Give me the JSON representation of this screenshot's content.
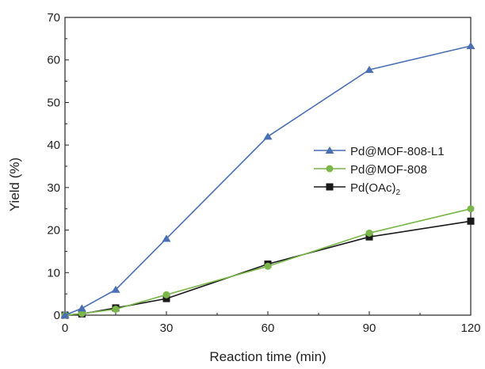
{
  "chart_data": {
    "type": "line",
    "title": "",
    "xlabel": "Reaction time (min)",
    "ylabel": "Yield (%)",
    "xlim": [
      0,
      120
    ],
    "ylim": [
      0,
      70
    ],
    "xticks": [
      0,
      30,
      60,
      90,
      120
    ],
    "yticks": [
      0,
      10,
      20,
      30,
      40,
      50,
      60,
      70
    ],
    "grid": false,
    "legend_position": "center-right",
    "series": [
      {
        "name": "Pd@MOF-808-L1",
        "color": "#4a6fb5",
        "marker": "triangle",
        "x": [
          0,
          5,
          15,
          30,
          60,
          90,
          120
        ],
        "y": [
          0,
          1.6,
          6.0,
          18.0,
          42.0,
          57.7,
          63.3
        ]
      },
      {
        "name": "Pd@MOF-808",
        "color": "#7ab648",
        "marker": "circle",
        "x": [
          0,
          5,
          15,
          30,
          60,
          90,
          120
        ],
        "y": [
          0,
          0.4,
          1.4,
          4.8,
          11.5,
          19.3,
          25.0
        ]
      },
      {
        "name_main": "Pd(OAc)",
        "name_sub": "2",
        "color": "#1a1a1a",
        "marker": "square",
        "x": [
          0,
          5,
          15,
          30,
          60,
          90,
          120
        ],
        "y": [
          0,
          0.3,
          1.7,
          3.9,
          12.0,
          18.4,
          22.1
        ]
      }
    ]
  }
}
